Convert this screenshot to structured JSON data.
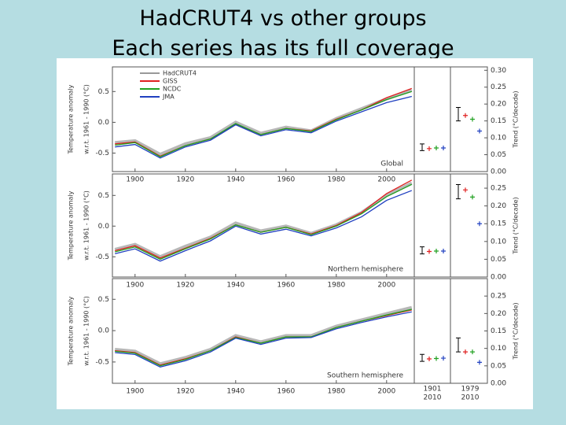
{
  "title": "HadCRUT4 vs other groups",
  "subtitle": "Each series has its full coverage",
  "trend_periods": [
    [
      "1901",
      "2010"
    ],
    [
      "1979",
      "2010"
    ]
  ],
  "chart_data": [
    {
      "type": "line",
      "label": "Global",
      "legend": true,
      "ylabel": [
        "Temperature anomaly",
        "w.r.t. 1961 - 1990 (°C)"
      ],
      "x": [
        1892,
        1900,
        1910,
        1920,
        1930,
        1940,
        1950,
        1960,
        1970,
        1980,
        1990,
        2000,
        2010
      ],
      "xlim": [
        1891,
        2011
      ],
      "xticks": [
        1900,
        1920,
        1940,
        1960,
        1980,
        2000
      ],
      "ylim": [
        -0.8,
        0.9
      ],
      "yticks": [
        -0.5,
        {
          "value": 0,
          "label": "0.0"
        },
        0.5
      ],
      "series": [
        {
          "name": "HadCRUT4",
          "color": "#999999",
          "values": [
            -0.33,
            -0.3,
            -0.52,
            -0.35,
            -0.25,
            0.0,
            -0.18,
            -0.08,
            -0.14,
            0.06,
            0.22,
            0.38,
            0.52
          ]
        },
        {
          "name": "GISS",
          "color": "#e02020",
          "values": [
            -0.35,
            -0.32,
            -0.55,
            -0.38,
            -0.27,
            -0.03,
            -0.2,
            -0.1,
            -0.14,
            0.05,
            0.2,
            0.4,
            0.55
          ]
        },
        {
          "name": "NCDC",
          "color": "#20a020",
          "values": [
            -0.37,
            -0.33,
            -0.56,
            -0.38,
            -0.27,
            -0.02,
            -0.2,
            -0.1,
            -0.15,
            0.04,
            0.2,
            0.37,
            0.5
          ]
        },
        {
          "name": "JMA",
          "color": "#2040c0",
          "values": [
            -0.4,
            -0.36,
            -0.58,
            -0.4,
            -0.29,
            -0.04,
            -0.22,
            -0.12,
            -0.17,
            0.02,
            0.17,
            0.32,
            0.42
          ]
        }
      ],
      "trend": {
        "ylabel": "Trend (°C/decade)",
        "ylim": [
          0,
          0.31
        ],
        "yticks": [
          {
            "value": 0,
            "label": "0.00"
          },
          0.05,
          {
            "value": 0.1,
            "label": "0.10"
          },
          0.15,
          {
            "value": 0.2,
            "label": "0.20"
          },
          0.25,
          {
            "value": 0.3,
            "label": "0.30"
          }
        ],
        "series": [
          {
            "values": [
              0.072,
              0.17
            ],
            "errors": [
              0.01,
              0.02
            ]
          },
          {
            "values": [
              0.068,
              0.166
            ]
          },
          {
            "values": [
              0.07,
              0.155
            ]
          },
          {
            "values": [
              0.07,
              0.12
            ]
          }
        ]
      }
    },
    {
      "type": "line",
      "label": "Northern hemisphere",
      "ylabel": [
        "Temperature anomaly",
        "w.r.t. 1961 - 1990 (°C)"
      ],
      "x": [
        1892,
        1900,
        1910,
        1920,
        1930,
        1940,
        1950,
        1960,
        1970,
        1980,
        1990,
        2000,
        2010
      ],
      "xlim": [
        1891,
        2011
      ],
      "xticks": [
        1900,
        1920,
        1940,
        1960,
        1980,
        2000
      ],
      "ylim": [
        -0.83,
        0.85
      ],
      "yticks": [
        -0.5,
        {
          "value": 0,
          "label": "0.0"
        },
        0.5
      ],
      "series": [
        {
          "color": "#999999",
          "values": [
            -0.38,
            -0.3,
            -0.5,
            -0.33,
            -0.18,
            0.05,
            -0.08,
            0.0,
            -0.12,
            0.02,
            0.22,
            0.5,
            0.7
          ]
        },
        {
          "color": "#e02020",
          "values": [
            -0.4,
            -0.32,
            -0.52,
            -0.36,
            -0.2,
            0.02,
            -0.1,
            -0.02,
            -0.13,
            0.01,
            0.22,
            0.53,
            0.75
          ]
        },
        {
          "color": "#20a020",
          "values": [
            -0.42,
            -0.34,
            -0.54,
            -0.37,
            -0.21,
            0.02,
            -0.1,
            -0.02,
            -0.14,
            0.0,
            0.2,
            0.48,
            0.68
          ]
        },
        {
          "color": "#2040c0",
          "values": [
            -0.45,
            -0.37,
            -0.57,
            -0.4,
            -0.24,
            0.0,
            -0.13,
            -0.05,
            -0.16,
            -0.03,
            0.15,
            0.42,
            0.58
          ]
        }
      ],
      "trend": {
        "ylabel": "Trend (°C/decade)",
        "ylim": [
          0,
          0.29
        ],
        "yticks": [
          {
            "value": 0,
            "label": "0.00"
          },
          0.05,
          {
            "value": 0.1,
            "label": "0.10"
          },
          0.15,
          {
            "value": 0.2,
            "label": "0.20"
          },
          0.25
        ],
        "series": [
          {
            "values": [
              0.075,
              0.24
            ],
            "errors": [
              0.01,
              0.02
            ]
          },
          {
            "values": [
              0.072,
              0.245
            ]
          },
          {
            "values": [
              0.073,
              0.225
            ]
          },
          {
            "values": [
              0.073,
              0.15
            ]
          }
        ]
      }
    },
    {
      "type": "line",
      "label": "Southern hemisphere",
      "ylabel": [
        "Temperature anomaly",
        "w.r.t. 1961 - 1990 (°C)"
      ],
      "x": [
        1892,
        1900,
        1910,
        1920,
        1930,
        1940,
        1950,
        1960,
        1970,
        1980,
        1990,
        2000,
        2010
      ],
      "xlim": [
        1891,
        2011
      ],
      "xticks": [
        1900,
        1920,
        1940,
        1960,
        1980,
        2000
      ],
      "ylim": [
        -0.84,
        0.83
      ],
      "yticks": [
        -0.5,
        {
          "value": 0,
          "label": "0.0"
        },
        0.5
      ],
      "series": [
        {
          "color": "#999999",
          "values": [
            -0.3,
            -0.33,
            -0.53,
            -0.43,
            -0.3,
            -0.08,
            -0.18,
            -0.08,
            -0.08,
            0.07,
            0.17,
            0.27,
            0.37
          ]
        },
        {
          "color": "#e02020",
          "values": [
            -0.32,
            -0.35,
            -0.55,
            -0.45,
            -0.32,
            -0.1,
            -0.2,
            -0.1,
            -0.1,
            0.05,
            0.15,
            0.24,
            0.33
          ]
        },
        {
          "color": "#20a020",
          "values": [
            -0.33,
            -0.36,
            -0.56,
            -0.46,
            -0.32,
            -0.11,
            -0.2,
            -0.1,
            -0.1,
            0.05,
            0.15,
            0.25,
            0.34
          ]
        },
        {
          "color": "#2040c0",
          "values": [
            -0.35,
            -0.38,
            -0.58,
            -0.48,
            -0.34,
            -0.12,
            -0.22,
            -0.12,
            -0.11,
            0.03,
            0.13,
            0.22,
            0.3
          ]
        }
      ],
      "trend": {
        "ylabel": "Trend (°C/decade)",
        "ylim": [
          0,
          0.3
        ],
        "yticks": [
          {
            "value": 0,
            "label": "0.00"
          },
          0.05,
          {
            "value": 0.1,
            "label": "0.10"
          },
          0.15,
          {
            "value": 0.2,
            "label": "0.20"
          },
          0.25
        ],
        "series": [
          {
            "values": [
              0.073,
              0.11
            ],
            "errors": [
              0.01,
              0.02
            ]
          },
          {
            "values": [
              0.07,
              0.09
            ]
          },
          {
            "values": [
              0.071,
              0.09
            ]
          },
          {
            "values": [
              0.072,
              0.06
            ]
          }
        ]
      }
    }
  ]
}
